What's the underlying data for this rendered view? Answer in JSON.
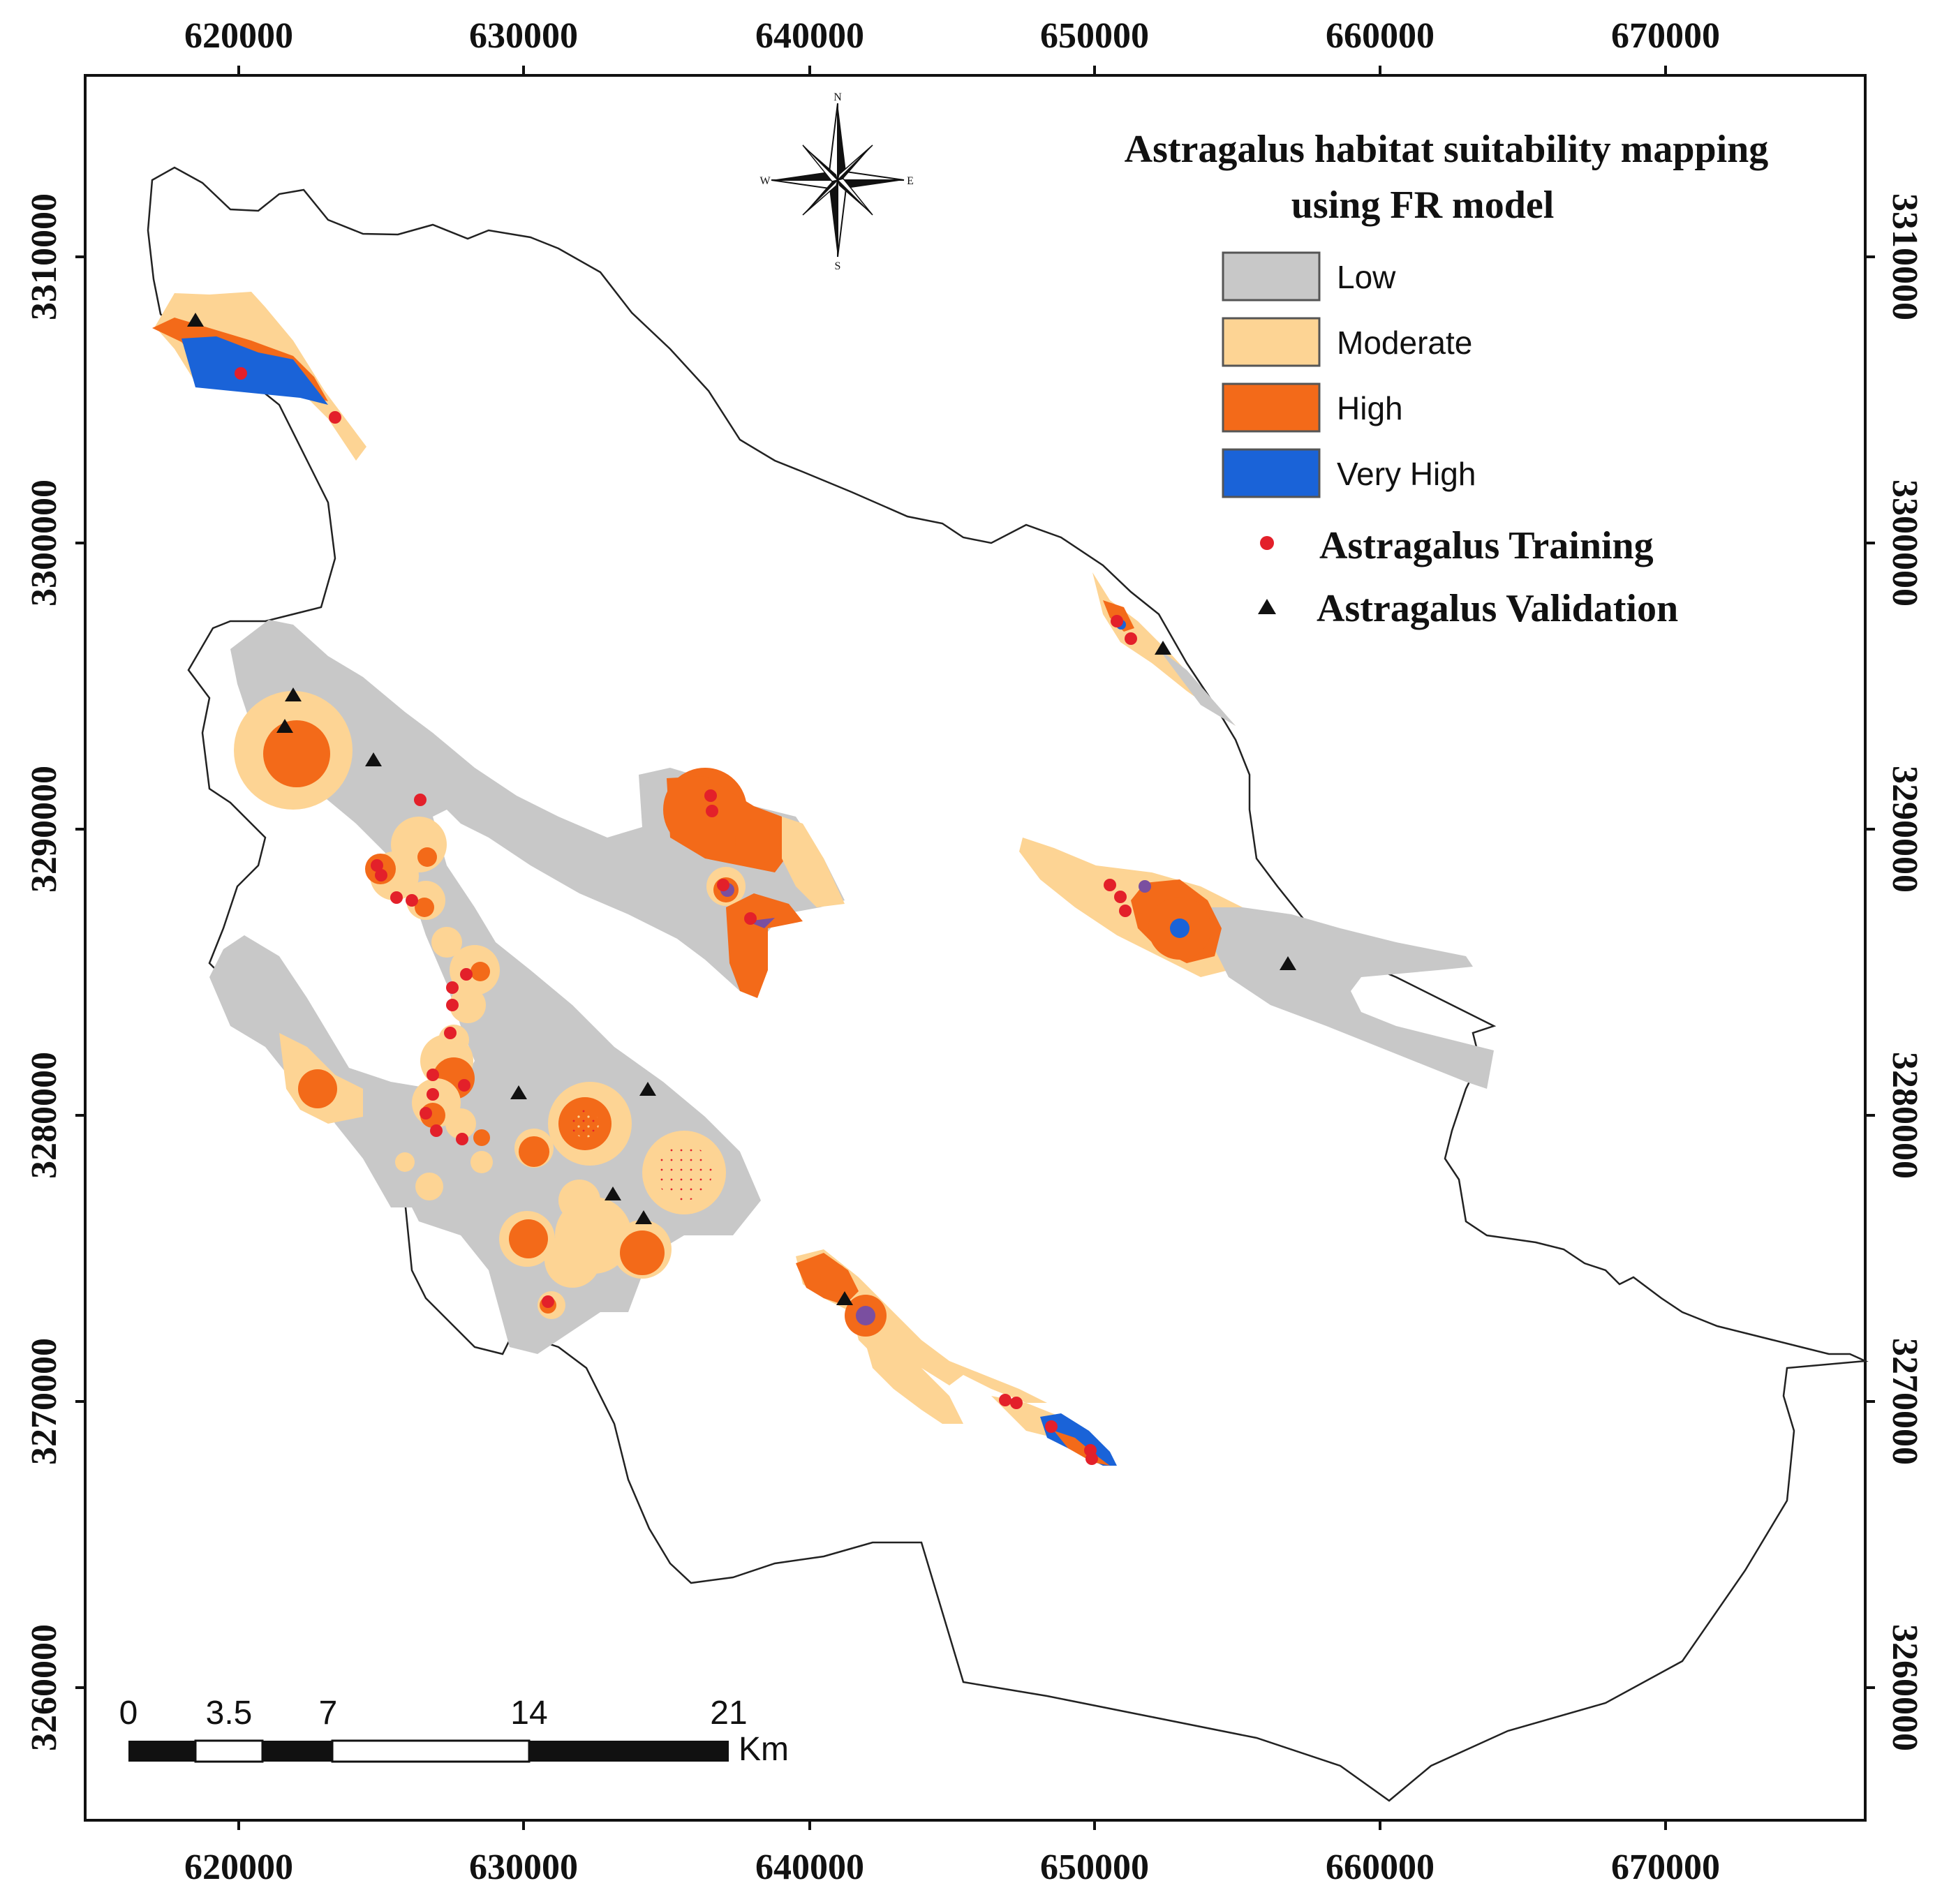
{
  "title_line1": "Astragalus habitat suitability mapping",
  "title_line2": "using FR model",
  "x_ticks": [
    "620000",
    "630000",
    "640000",
    "650000",
    "660000",
    "670000"
  ],
  "y_ticks": [
    "3310000",
    "3300000",
    "3290000",
    "3280000",
    "3270000",
    "3260000"
  ],
  "legend": {
    "classes": [
      {
        "label": "Low",
        "color": "#c8c8c8"
      },
      {
        "label": "Moderate",
        "color": "#fdd494"
      },
      {
        "label": "High",
        "color": "#f36a19"
      },
      {
        "label": "Very High",
        "color": "#1a63d8"
      }
    ],
    "training_label": "Astragalus Training",
    "training_color": "#e3202a",
    "validation_label": "Astragalus Validation",
    "validation_color": "#111111"
  },
  "compass": {
    "n": "N",
    "s": "S",
    "e": "E",
    "w": "W"
  },
  "scale_bar": {
    "labels": [
      "0",
      "3.5",
      "7",
      "14",
      "21"
    ],
    "unit": "Km"
  }
}
